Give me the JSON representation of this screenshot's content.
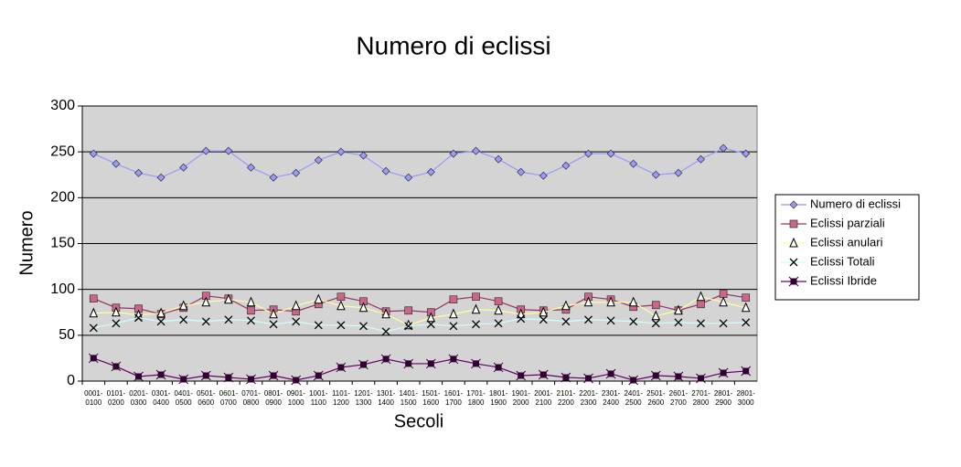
{
  "chart_data": {
    "type": "line",
    "title": "Numero di eclissi",
    "x_label": "Secoli",
    "y_label": "Numero",
    "categories": [
      "0001-0100",
      "0101-0200",
      "0201-0300",
      "0301-0400",
      "0401-0500",
      "0501-0600",
      "0601-0700",
      "0701-0800",
      "0801-0900",
      "0901-1000",
      "1001-1100",
      "1101-1200",
      "1201-1300",
      "1301-1400",
      "1401-1500",
      "1501-1600",
      "1601-1700",
      "1701-1800",
      "1801-1900",
      "1901-2000",
      "2001-2100",
      "2101-2200",
      "2201-2300",
      "2301-2400",
      "2401-2500",
      "2501-2600",
      "2601-2700",
      "2701-2800",
      "2801-2900",
      "2801-3000"
    ],
    "series": [
      {
        "name": "Numero di eclissi",
        "color": "#9999ff",
        "marker": "diamond",
        "marker_color": "#9999ff",
        "values": [
          248,
          237,
          227,
          222,
          233,
          251,
          251,
          233,
          222,
          227,
          241,
          250,
          246,
          229,
          222,
          228,
          248,
          251,
          242,
          228,
          224,
          235,
          248,
          248,
          237,
          225,
          227,
          242,
          254,
          248
        ]
      },
      {
        "name": "Eclissi parziali",
        "color": "#993366",
        "marker": "square",
        "marker_color": "#cc6688",
        "values": [
          90,
          80,
          79,
          73,
          80,
          93,
          90,
          77,
          78,
          76,
          84,
          92,
          87,
          76,
          77,
          75,
          89,
          92,
          87,
          78,
          77,
          78,
          92,
          89,
          81,
          83,
          77,
          84,
          95,
          91
        ]
      },
      {
        "name": "Eclissi anulari",
        "color": "#ffff99",
        "marker": "triangle",
        "marker_color": "#ffffff",
        "values": [
          74,
          75,
          72,
          74,
          82,
          86,
          89,
          86,
          73,
          82,
          89,
          82,
          80,
          73,
          61,
          69,
          73,
          78,
          77,
          73,
          75,
          82,
          86,
          86,
          86,
          71,
          77,
          92,
          86,
          80
        ]
      },
      {
        "name": "Eclissi Totali",
        "color": "#ccffff",
        "marker": "cross",
        "marker_color": "#000000",
        "values": [
          58,
          63,
          69,
          65,
          67,
          65,
          67,
          66,
          62,
          65,
          61,
          61,
          60,
          54,
          60,
          62,
          60,
          62,
          63,
          68,
          67,
          65,
          67,
          66,
          65,
          63,
          64,
          63,
          63,
          64
        ]
      },
      {
        "name": "Eclissi Ibride",
        "color": "#660066",
        "marker": "star",
        "marker_color": "#330033",
        "values": [
          25,
          16,
          5,
          7,
          2,
          6,
          4,
          2,
          6,
          1,
          6,
          15,
          18,
          24,
          19,
          19,
          24,
          19,
          15,
          6,
          7,
          4,
          3,
          8,
          1,
          6,
          5,
          3,
          9,
          11
        ]
      }
    ],
    "ylim": [
      0,
      300
    ],
    "yticks": [
      0,
      50,
      100,
      150,
      200,
      250,
      300
    ],
    "grid": true,
    "legend": "right"
  }
}
